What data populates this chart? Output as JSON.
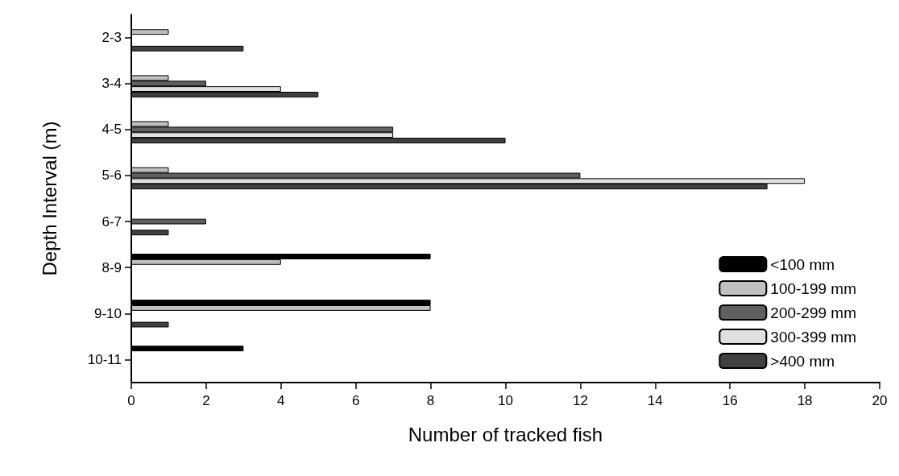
{
  "chart_data": {
    "type": "bar",
    "orientation": "horizontal",
    "xlabel": "Number of tracked fish",
    "ylabel": "Depth Interval (m)",
    "categories": [
      "2-3",
      "3-4",
      "4-5",
      "5-6",
      "6-7",
      "8-9",
      "9-10",
      "10-11"
    ],
    "series": [
      {
        "name": "<100 mm",
        "color": "#000000",
        "values": [
          null,
          null,
          null,
          null,
          null,
          8,
          8,
          3
        ]
      },
      {
        "name": "100-199 mm",
        "color": "#c0c0c0",
        "values": [
          1,
          1,
          1,
          1,
          null,
          4,
          8,
          null
        ]
      },
      {
        "name": "200-299 mm",
        "color": "#606060",
        "values": [
          null,
          2,
          7,
          12,
          2,
          null,
          null,
          null
        ]
      },
      {
        "name": "300-399 mm",
        "color": "#e0e0e0",
        "values": [
          null,
          4,
          7,
          18,
          null,
          null,
          null,
          null
        ]
      },
      {
        "name": ">400 mm",
        "color": "#404040",
        "values": [
          3,
          5,
          10,
          17,
          1,
          null,
          1,
          null
        ]
      }
    ],
    "xlim": [
      0,
      20
    ],
    "xticks": [
      0,
      2,
      4,
      6,
      8,
      10,
      12,
      14,
      16,
      18,
      20
    ],
    "grid": false,
    "legend": "bottom right"
  }
}
